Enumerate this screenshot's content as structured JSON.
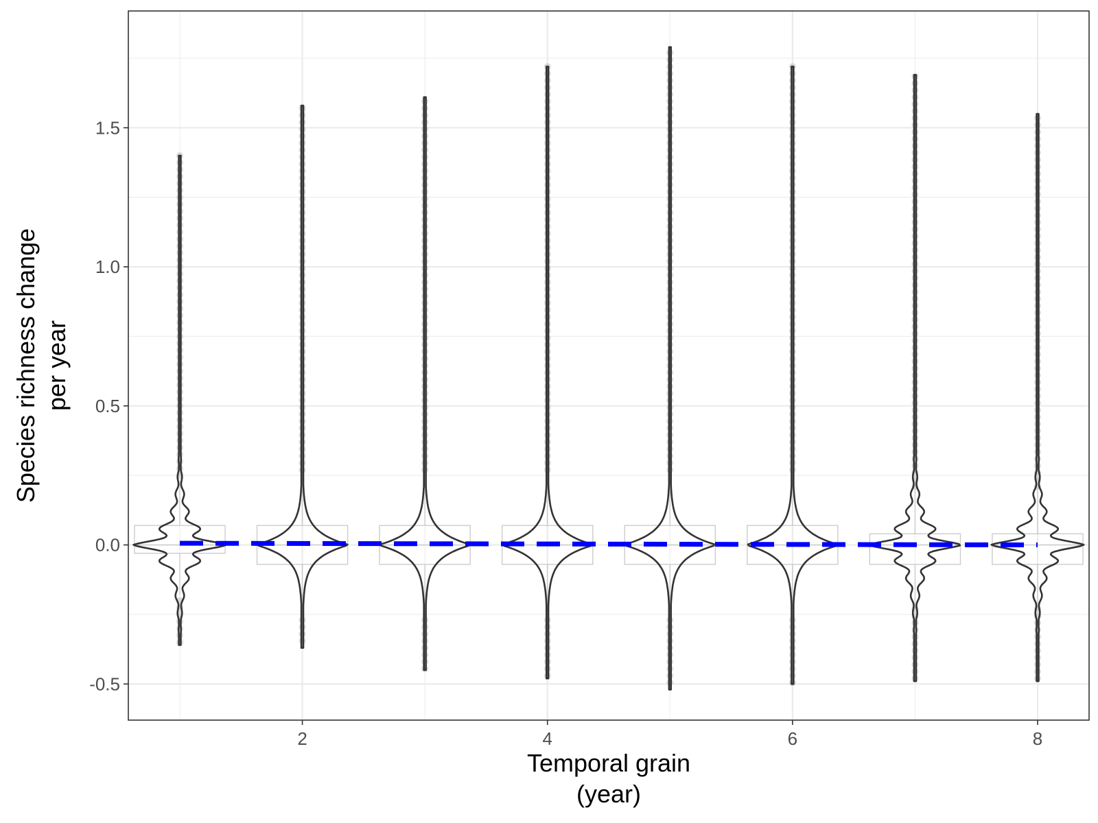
{
  "chart_data": {
    "type": "violin",
    "title": "",
    "xlabel": [
      "Temporal grain",
      "(year)"
    ],
    "ylabel": [
      "Species richness change",
      "per year"
    ],
    "xlim": [
      0.58,
      8.42
    ],
    "ylim": [
      -0.63,
      1.92
    ],
    "x_ticks": [
      2,
      4,
      6,
      8
    ],
    "x_tick_labels": [
      "2",
      "4",
      "6",
      "8"
    ],
    "y_ticks": [
      -0.5,
      0.0,
      0.5,
      1.0,
      1.5
    ],
    "y_tick_labels": [
      "-0.5",
      "0.0",
      "0.5",
      "1.0",
      "1.5"
    ],
    "grid": true,
    "violins": [
      {
        "x": 1,
        "min": -0.36,
        "max": 1.4,
        "median": 0.0,
        "q1": -0.03,
        "q3": 0.07,
        "whisker_low": -0.18,
        "whisker_high": 0.23,
        "tail_low": -0.2,
        "tail_high": 0.25,
        "shape": "rugged"
      },
      {
        "x": 2,
        "min": -0.37,
        "max": 1.58,
        "median": 0.0,
        "q1": -0.07,
        "q3": 0.07,
        "whisker_low": -0.27,
        "whisker_high": 0.27,
        "tail_low": -0.27,
        "tail_high": 0.27,
        "shape": "smooth"
      },
      {
        "x": 3,
        "min": -0.45,
        "max": 1.61,
        "median": 0.0,
        "q1": -0.07,
        "q3": 0.07,
        "whisker_low": -0.27,
        "whisker_high": 0.27,
        "tail_low": -0.27,
        "tail_high": 0.27,
        "shape": "smooth"
      },
      {
        "x": 4,
        "min": -0.48,
        "max": 1.72,
        "median": 0.0,
        "q1": -0.07,
        "q3": 0.07,
        "whisker_low": -0.27,
        "whisker_high": 0.27,
        "tail_low": -0.27,
        "tail_high": 0.27,
        "shape": "smooth"
      },
      {
        "x": 5,
        "min": -0.52,
        "max": 1.79,
        "median": 0.0,
        "q1": -0.07,
        "q3": 0.07,
        "whisker_low": -0.27,
        "whisker_high": 0.27,
        "tail_low": -0.27,
        "tail_high": 0.27,
        "shape": "smooth"
      },
      {
        "x": 6,
        "min": -0.5,
        "max": 1.72,
        "median": 0.0,
        "q1": -0.07,
        "q3": 0.07,
        "whisker_low": -0.27,
        "whisker_high": 0.27,
        "tail_low": -0.27,
        "tail_high": 0.27,
        "shape": "smooth"
      },
      {
        "x": 7,
        "min": -0.49,
        "max": 1.69,
        "median": 0.0,
        "q1": -0.07,
        "q3": 0.04,
        "whisker_low": -0.23,
        "whisker_high": 0.21,
        "tail_low": -0.23,
        "tail_high": 0.21,
        "shape": "rugged"
      },
      {
        "x": 8,
        "min": -0.49,
        "max": 1.55,
        "median": 0.0,
        "q1": -0.07,
        "q3": 0.04,
        "whisker_low": -0.23,
        "whisker_high": 0.21,
        "tail_low": -0.23,
        "tail_high": 0.21,
        "shape": "rugged"
      }
    ],
    "trend_line": {
      "x": [
        1,
        8
      ],
      "y": [
        0.006,
        0.0
      ],
      "color": "#0000ff",
      "style": "dashed"
    },
    "colors": {
      "violin": "#333333",
      "points": "#bebebe",
      "box": "#cccccc",
      "grid": "#ebebeb",
      "trend": "#0000ff"
    }
  }
}
